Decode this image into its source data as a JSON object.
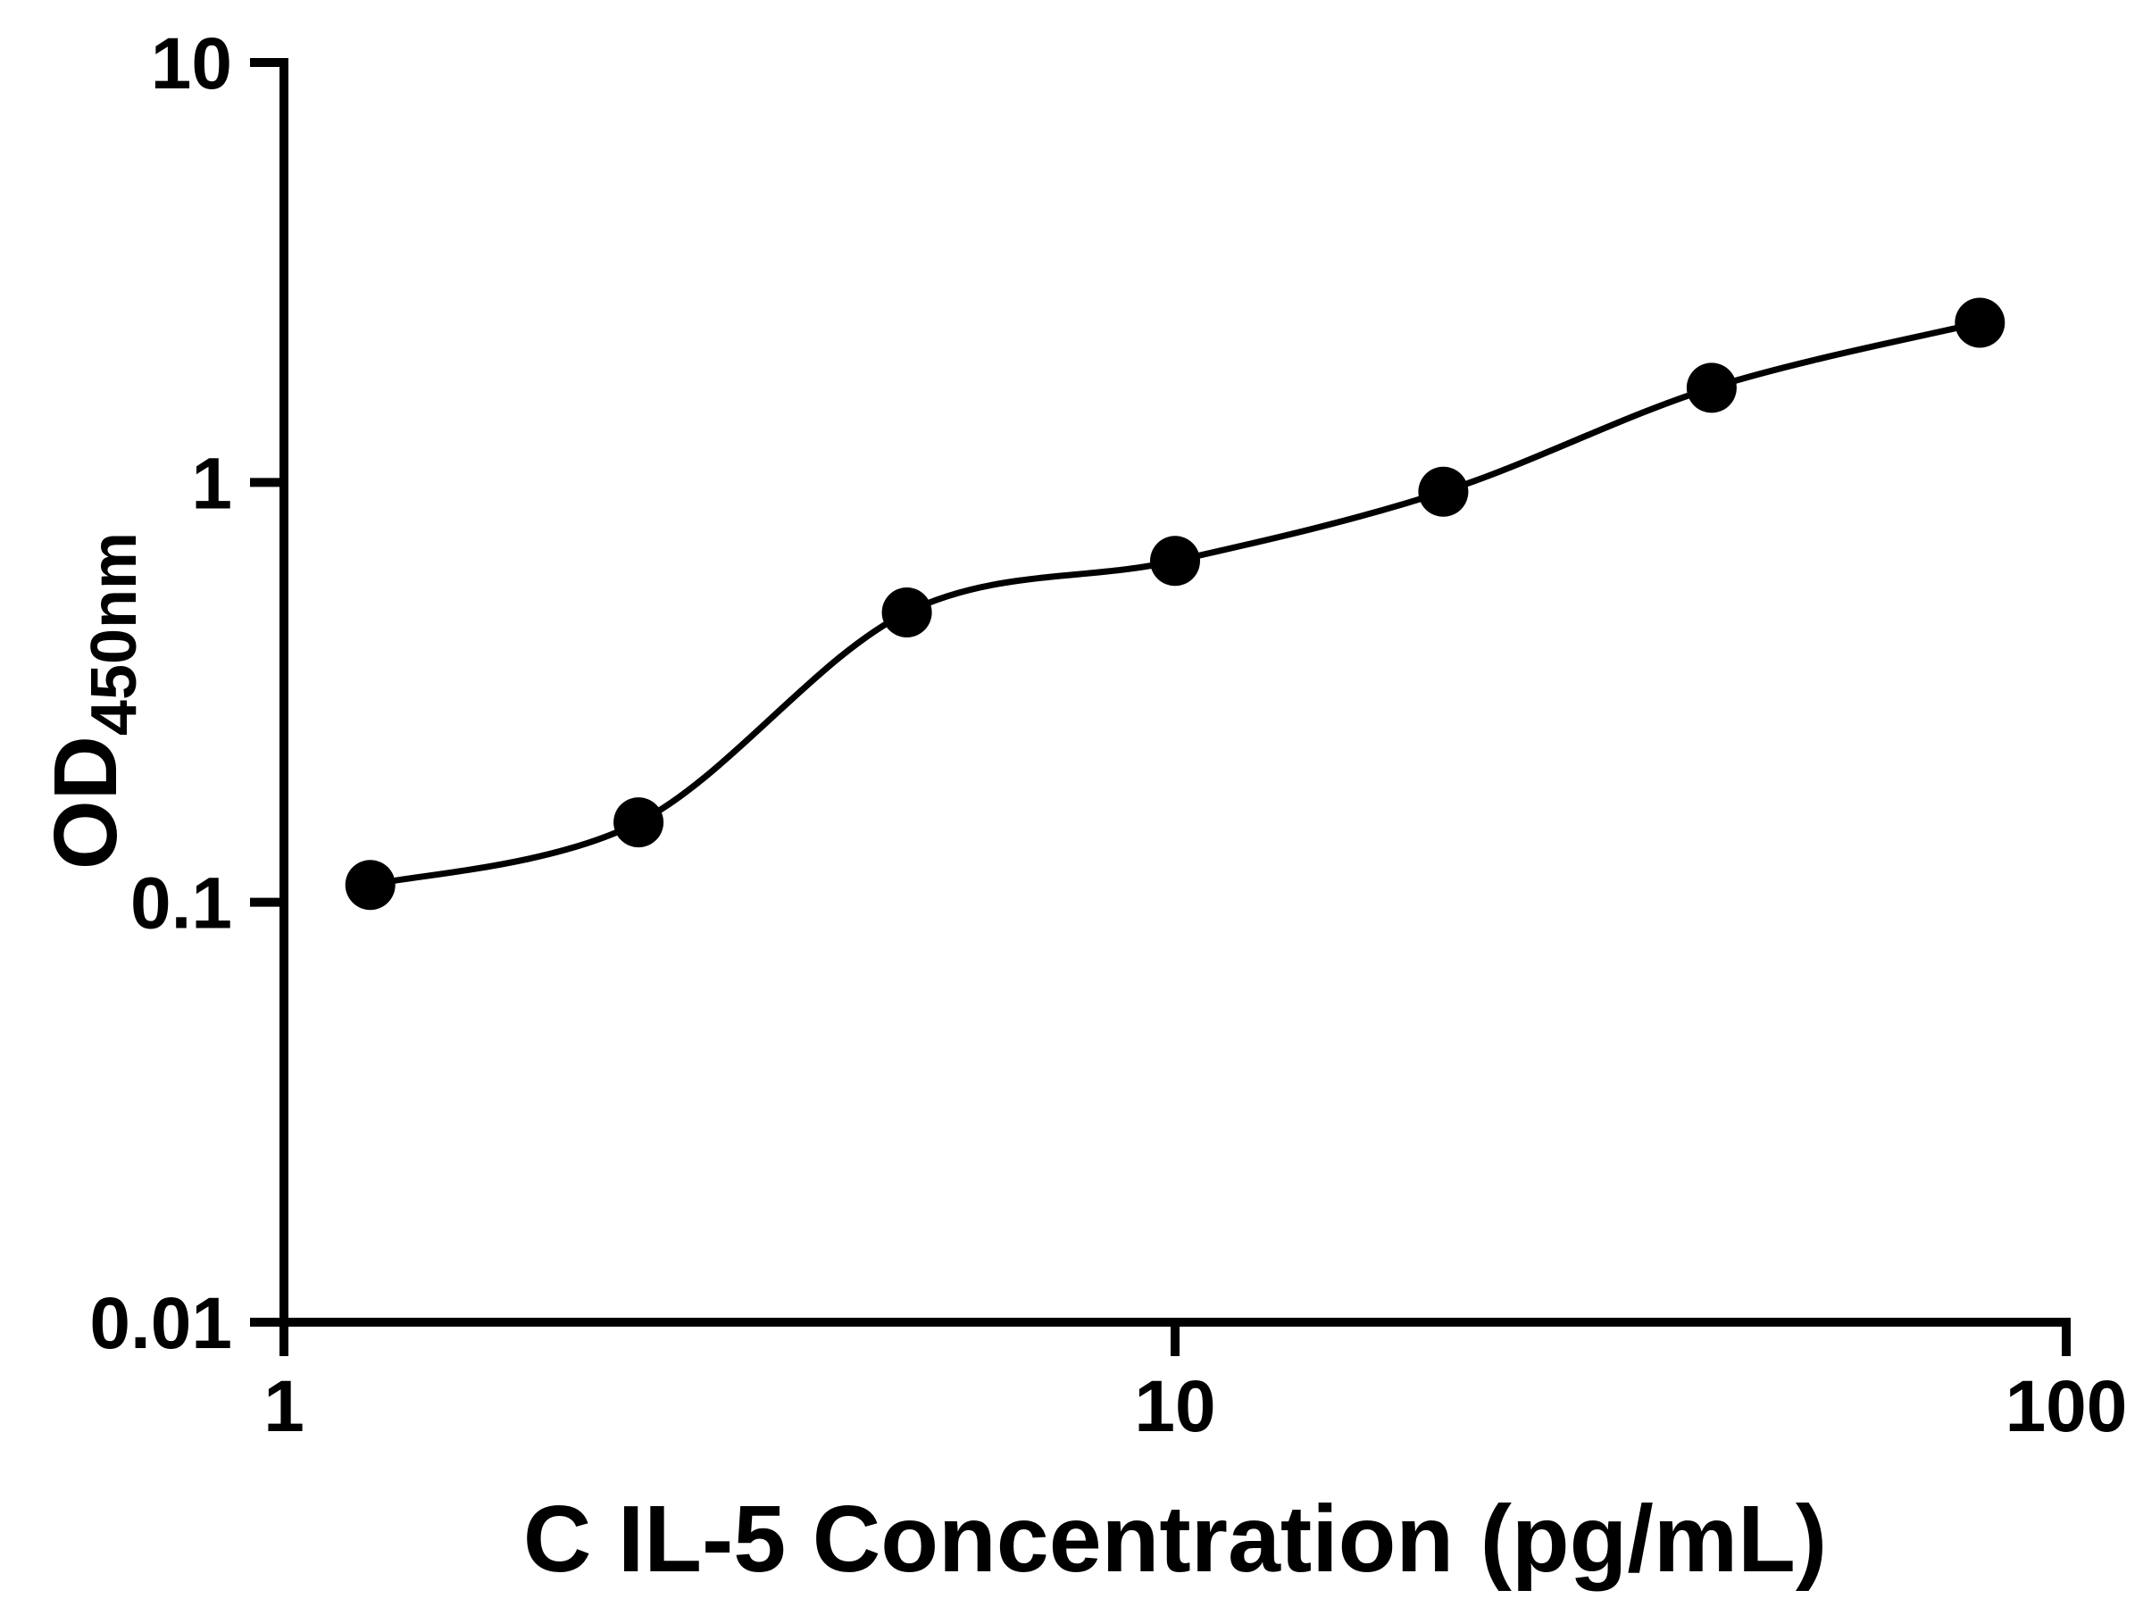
{
  "figure": {
    "ylabel_main": "OD",
    "ylabel_sub": "450nm"
  },
  "chart_data": {
    "type": "scatter",
    "title": "",
    "xlabel": "C IL-5 Concentration (pg/mL)",
    "ylabel": "OD450nm",
    "x_scale": "log",
    "y_scale": "log",
    "xlim": [
      1,
      100
    ],
    "ylim": [
      0.01,
      10
    ],
    "x_ticks": [
      1,
      10,
      100
    ],
    "x_tick_labels": [
      "1",
      "10",
      "100"
    ],
    "y_ticks": [
      0.01,
      0.1,
      1,
      10
    ],
    "y_tick_labels": [
      "0.01",
      "0.1",
      "1",
      "10"
    ],
    "x": [
      1.25,
      2.5,
      5,
      10,
      20,
      40,
      80
    ],
    "y": [
      0.11,
      0.155,
      0.49,
      0.65,
      0.95,
      1.68,
      2.4
    ],
    "fit": "smooth standard-curve fit through data points",
    "marker_color": "#000000",
    "line_color": "#000000",
    "axis_color": "#000000",
    "background": "#ffffff",
    "grid": false,
    "legend": false
  }
}
